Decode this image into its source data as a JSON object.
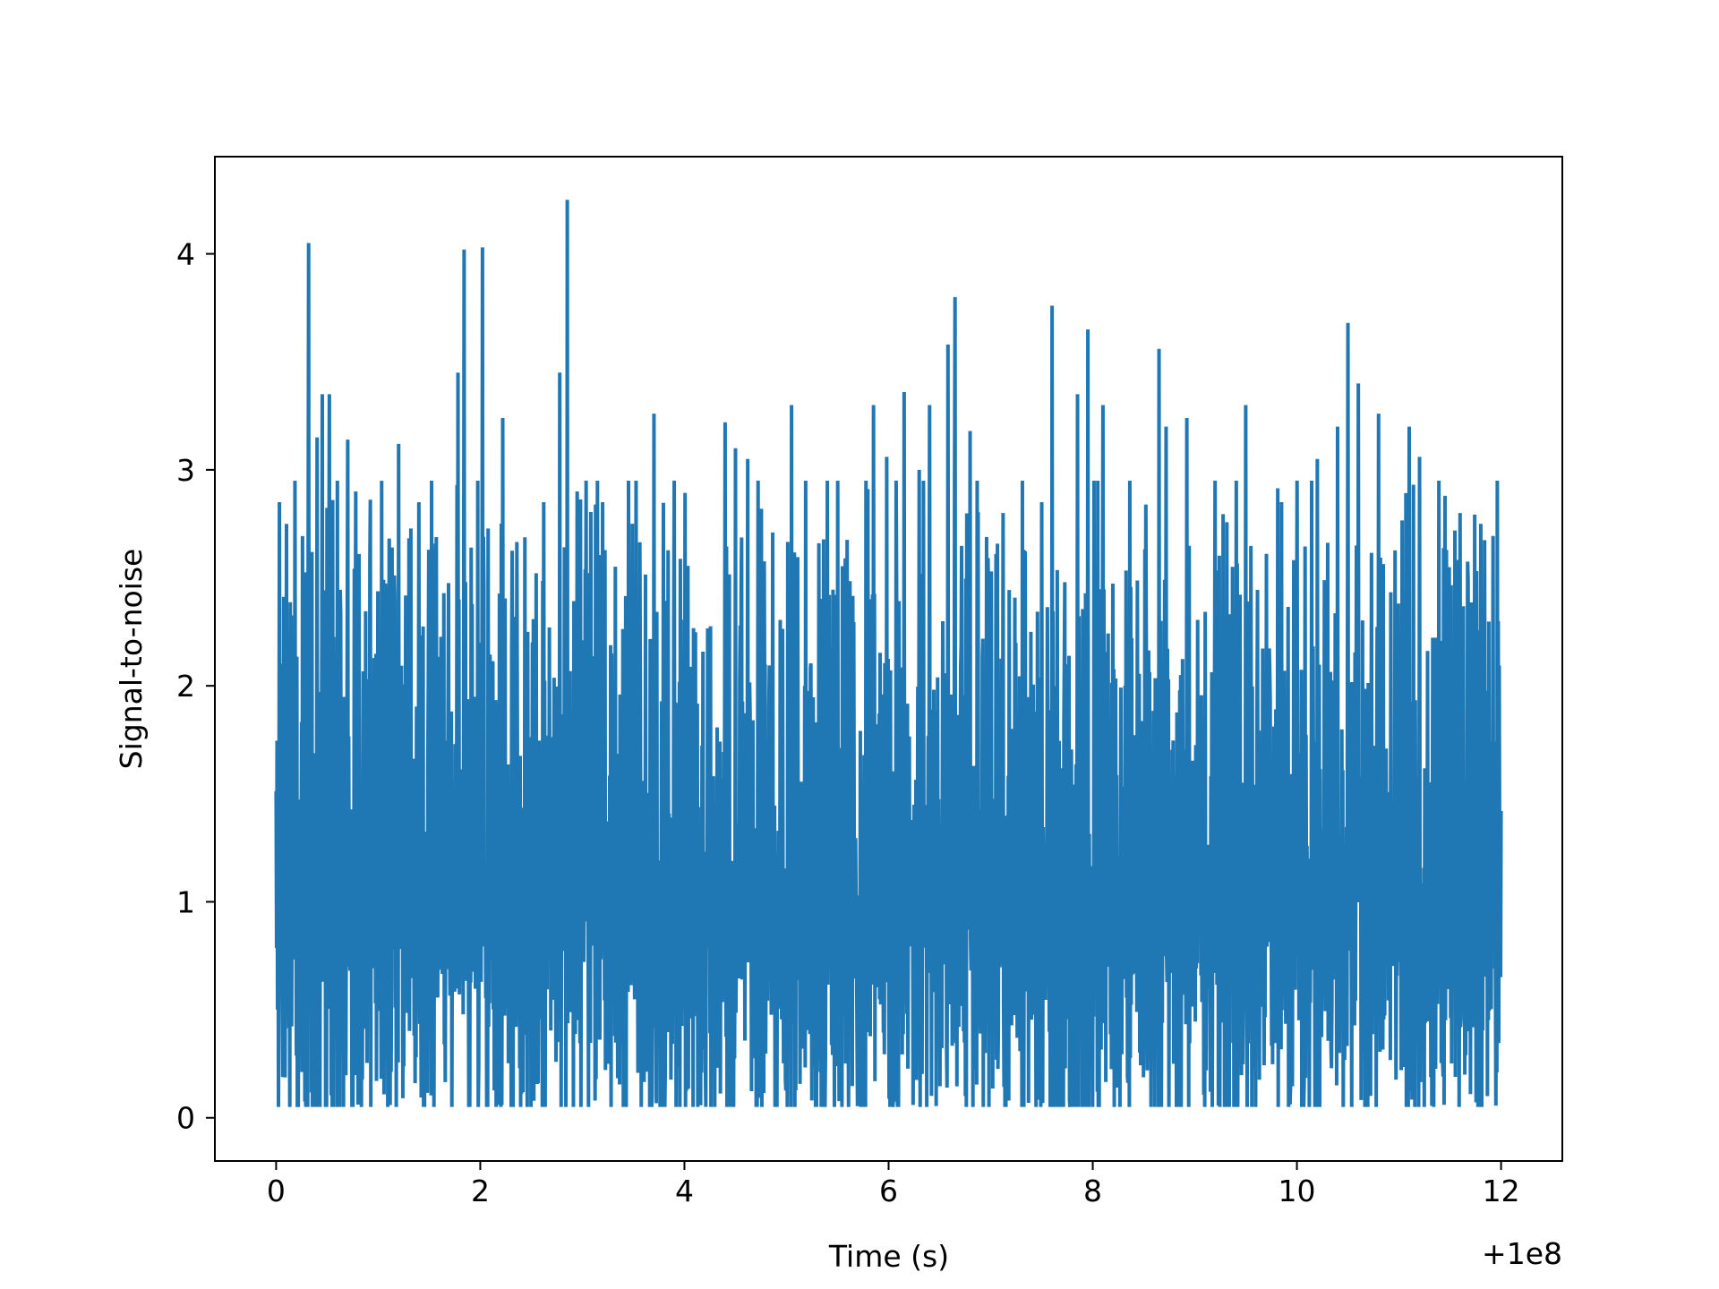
{
  "chart_data": {
    "type": "line",
    "title": "",
    "xlabel": "Time (s)",
    "ylabel": "Signal-to-noise",
    "x_offset_label": "+1e8",
    "xlim": [
      -0.6,
      12.6
    ],
    "ylim": [
      -0.2,
      4.45
    ],
    "grid": false,
    "xticks": [
      0,
      2,
      4,
      6,
      8,
      10,
      12
    ],
    "xtick_labels": [
      "0",
      "2",
      "4",
      "6",
      "8",
      "10",
      "12"
    ],
    "yticks": [
      0,
      1,
      2,
      3,
      4
    ],
    "ytick_labels": [
      "0",
      "1",
      "2",
      "3",
      "4"
    ],
    "series": [
      {
        "color": "#1f77b4",
        "x_range": [
          0,
          12
        ],
        "noise_band": [
          0.05,
          2.4
        ],
        "peaks": [
          [
            0.03,
            2.85
          ],
          [
            0.1,
            2.75
          ],
          [
            0.32,
            4.05
          ],
          [
            0.4,
            3.15
          ],
          [
            0.45,
            3.35
          ],
          [
            0.52,
            3.35
          ],
          [
            0.7,
            3.14
          ],
          [
            0.78,
            2.9
          ],
          [
            1.2,
            3.12
          ],
          [
            1.4,
            2.85
          ],
          [
            1.78,
            3.45
          ],
          [
            1.84,
            4.02
          ],
          [
            2.02,
            4.03
          ],
          [
            2.22,
            3.24
          ],
          [
            2.62,
            2.85
          ],
          [
            2.78,
            3.45
          ],
          [
            2.85,
            4.25
          ],
          [
            2.95,
            2.9
          ],
          [
            3.2,
            2.85
          ],
          [
            3.45,
            2.95
          ],
          [
            3.7,
            3.26
          ],
          [
            3.9,
            2.95
          ],
          [
            4.4,
            3.22
          ],
          [
            4.5,
            3.1
          ],
          [
            4.62,
            3.05
          ],
          [
            4.72,
            2.95
          ],
          [
            5.05,
            3.3
          ],
          [
            5.5,
            2.95
          ],
          [
            5.85,
            3.3
          ],
          [
            5.98,
            3.06
          ],
          [
            6.15,
            3.36
          ],
          [
            6.3,
            3.0
          ],
          [
            6.4,
            3.3
          ],
          [
            6.58,
            3.58
          ],
          [
            6.65,
            3.8
          ],
          [
            6.8,
            3.18
          ],
          [
            7.12,
            2.8
          ],
          [
            7.5,
            2.85
          ],
          [
            7.6,
            3.76
          ],
          [
            7.85,
            3.35
          ],
          [
            7.95,
            3.65
          ],
          [
            8.1,
            3.3
          ],
          [
            8.65,
            3.56
          ],
          [
            8.72,
            3.2
          ],
          [
            8.92,
            3.24
          ],
          [
            9.2,
            2.95
          ],
          [
            9.5,
            3.3
          ],
          [
            9.85,
            2.85
          ],
          [
            10.0,
            2.95
          ],
          [
            10.2,
            3.05
          ],
          [
            10.4,
            3.2
          ],
          [
            10.5,
            3.68
          ],
          [
            10.6,
            3.4
          ],
          [
            10.8,
            3.26
          ],
          [
            11.1,
            3.2
          ],
          [
            11.2,
            3.06
          ],
          [
            11.45,
            2.88
          ],
          [
            11.6,
            2.8
          ],
          [
            11.8,
            2.75
          ]
        ]
      }
    ]
  }
}
